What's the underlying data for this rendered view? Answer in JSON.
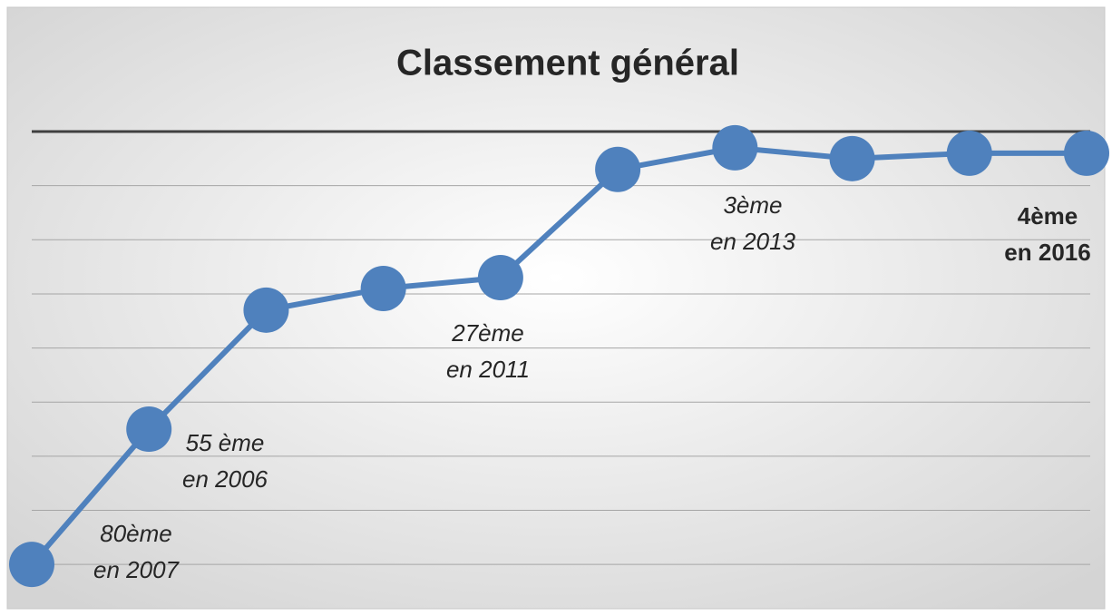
{
  "chart_data": {
    "type": "line",
    "title": "Classement général",
    "categories": [
      null,
      null,
      null,
      null,
      null,
      null,
      null,
      null,
      null,
      null
    ],
    "series": [
      {
        "color": "#4f81bd",
        "values": [
          80,
          55,
          33,
          29,
          27,
          7,
          3,
          5,
          4,
          4
        ]
      }
    ],
    "ylim": [
      0,
      85
    ],
    "yticks": [
      0,
      10,
      20,
      30,
      40,
      50,
      60,
      70,
      80
    ],
    "y_reversed": true,
    "grid": true,
    "annotations": [
      [
        "80ème",
        "en 2007"
      ],
      [
        "55 ème",
        "en 2006"
      ],
      [
        "27ème",
        "en 2011"
      ],
      [
        "3ème",
        "en 2013"
      ],
      [
        "4ème",
        "en 2016"
      ]
    ]
  }
}
